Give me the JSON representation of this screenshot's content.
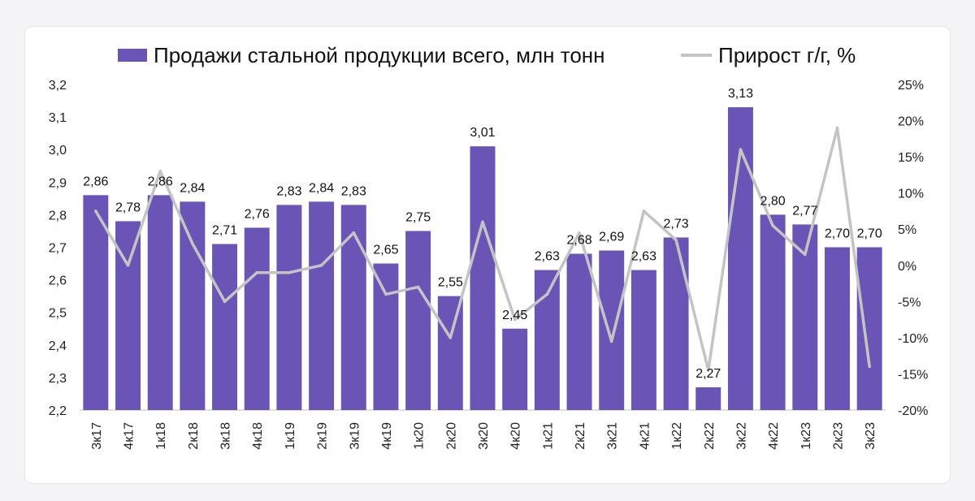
{
  "chart_data": {
    "type": "bar",
    "categories": [
      "3к17",
      "4к17",
      "1к18",
      "2к18",
      "3к18",
      "4к18",
      "1к19",
      "2к19",
      "3к19",
      "4к19",
      "1к20",
      "2к20",
      "3к20",
      "4к20",
      "1к21",
      "2к21",
      "3к21",
      "4к21",
      "1к22",
      "2к22",
      "3к22",
      "4к22",
      "1к23",
      "2к23",
      "3к23"
    ],
    "series": [
      {
        "name": "Продажи стальной продукции всего, млн тонн",
        "type": "bar",
        "axis": "left",
        "color": "#6a55b6",
        "values": [
          2.86,
          2.78,
          2.86,
          2.84,
          2.71,
          2.76,
          2.83,
          2.84,
          2.83,
          2.65,
          2.75,
          2.55,
          3.01,
          2.45,
          2.63,
          2.68,
          2.69,
          2.63,
          2.73,
          2.27,
          3.13,
          2.8,
          2.77,
          2.7,
          2.7
        ],
        "labels": [
          "2,86",
          "2,78",
          "2,86",
          "2,84",
          "2,71",
          "2,76",
          "2,83",
          "2,84",
          "2,83",
          "2,65",
          "2,75",
          "2,55",
          "3,01",
          "2,45",
          "2,63",
          "2,68",
          "2,69",
          "2,63",
          "2,73",
          "2,27",
          "3,13",
          "2,80",
          "2,77",
          "2,70",
          "2,70"
        ]
      },
      {
        "name": "Прирост г/г, %",
        "type": "line",
        "axis": "right",
        "color": "#c4c4c4",
        "values": [
          7.5,
          0,
          13,
          3,
          -5,
          -1,
          -1,
          0,
          4.5,
          -4,
          -3,
          -10,
          6,
          -7.5,
          -4,
          4.5,
          -10.5,
          7.5,
          3.5,
          -14.5,
          16,
          5.5,
          1.5,
          19,
          -14
        ]
      }
    ],
    "y_left": {
      "ylim": [
        2.2,
        3.2
      ],
      "ticks": [
        "2,2",
        "2,3",
        "2,4",
        "2,5",
        "2,6",
        "2,7",
        "2,8",
        "2,9",
        "3,0",
        "3,1",
        "3,2"
      ]
    },
    "y_right": {
      "ylim": [
        -20,
        25
      ],
      "ticks": [
        "-20%",
        "-15%",
        "-10%",
        "-5%",
        "0%",
        "5%",
        "10%",
        "15%",
        "20%",
        "25%"
      ]
    },
    "grid": false,
    "legend_position": "top"
  }
}
